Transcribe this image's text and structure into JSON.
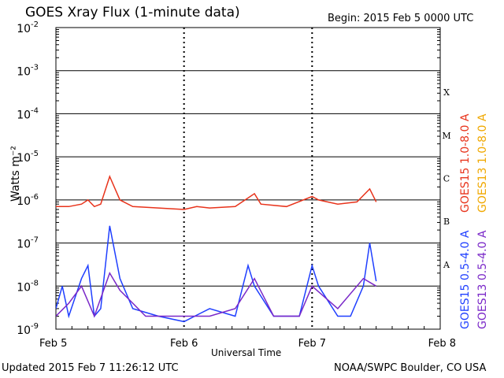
{
  "header": {
    "title": "GOES Xray Flux (1-minute data)",
    "begin": "Begin:  2015 Feb 5 0000 UTC"
  },
  "footer": {
    "updated": "Updated 2015 Feb  7 11:26:12 UTC",
    "credit": "NOAA/SWPC Boulder, CO USA"
  },
  "axes": {
    "xlabel": "Universal Time",
    "ylabel": "Watts m⁻²",
    "y_ticks": [
      {
        "exp": -9,
        "label": "10",
        "sup": "-9"
      },
      {
        "exp": -8,
        "label": "10",
        "sup": "-8"
      },
      {
        "exp": -7,
        "label": "10",
        "sup": "-7"
      },
      {
        "exp": -6,
        "label": "10",
        "sup": "-6"
      },
      {
        "exp": -5,
        "label": "10",
        "sup": "-5"
      },
      {
        "exp": -4,
        "label": "10",
        "sup": "-4"
      },
      {
        "exp": -3,
        "label": "10",
        "sup": "-3"
      },
      {
        "exp": -2,
        "label": "10",
        "sup": "-2"
      }
    ],
    "x_ticks": [
      "Feb 5",
      "Feb 6",
      "Feb 7",
      "Feb 8"
    ],
    "flare_classes": [
      {
        "label": "X",
        "exp": -4
      },
      {
        "label": "M",
        "exp": -5
      },
      {
        "label": "C",
        "exp": -6
      },
      {
        "label": "B",
        "exp": -7
      },
      {
        "label": "A",
        "exp": -8
      }
    ]
  },
  "legend": [
    {
      "text": "GOES15 1.0-8.0 A",
      "color": "#e8331b"
    },
    {
      "text": "GOES13 1.0-8.0 A",
      "color": "#f0a800"
    },
    {
      "text": "GOES15 0.5-4.0 A",
      "color": "#1f3fff"
    },
    {
      "text": "GOES13 0.5-4.0 A",
      "color": "#7a28c8"
    }
  ],
  "chart_data": {
    "type": "line",
    "title": "GOES Xray Flux (1-minute data)",
    "xlabel": "Universal Time",
    "ylabel": "Watts m⁻²",
    "y_scale": "log",
    "ylim": [
      1e-09,
      0.01
    ],
    "x_unit": "days since 2015 Feb 5 0000 UTC",
    "xlim": [
      0,
      3
    ],
    "grid": "horizontal at each decade; dashed vertical at day boundaries",
    "series": [
      {
        "name": "GOES15 1.0-8.0 A",
        "color": "#e8331b",
        "x": [
          0.0,
          0.1,
          0.2,
          0.25,
          0.3,
          0.35,
          0.42,
          0.5,
          0.6,
          0.8,
          1.0,
          1.1,
          1.2,
          1.4,
          1.55,
          1.6,
          1.8,
          2.0,
          2.05,
          2.2,
          2.35,
          2.45,
          2.5
        ],
        "y": [
          7e-07,
          7e-07,
          8e-07,
          1e-06,
          7e-07,
          8e-07,
          3.5e-06,
          1e-06,
          7e-07,
          6.5e-07,
          6e-07,
          7e-07,
          6.5e-07,
          7e-07,
          1.4e-06,
          8e-07,
          7e-07,
          1.2e-06,
          1e-06,
          8e-07,
          9e-07,
          1.8e-06,
          9e-07
        ]
      },
      {
        "name": "GOES15 0.5-4.0 A",
        "color": "#1f3fff",
        "x": [
          0.0,
          0.05,
          0.1,
          0.2,
          0.25,
          0.3,
          0.35,
          0.42,
          0.5,
          0.6,
          0.8,
          1.0,
          1.2,
          1.4,
          1.5,
          1.55,
          1.7,
          1.9,
          2.0,
          2.05,
          2.2,
          2.3,
          2.4,
          2.45,
          2.5
        ],
        "y": [
          3e-09,
          1e-08,
          2e-09,
          1.5e-08,
          3e-08,
          2e-09,
          3e-09,
          2.5e-07,
          1.5e-08,
          3e-09,
          2e-09,
          1.5e-09,
          3e-09,
          2e-09,
          3e-08,
          1e-08,
          2e-09,
          2e-09,
          3e-08,
          1e-08,
          2e-09,
          2e-09,
          1e-08,
          1e-07,
          1.3e-08
        ]
      },
      {
        "name": "GOES13 0.5-4.0 A",
        "color": "#7a28c8",
        "x": [
          0.0,
          0.1,
          0.2,
          0.3,
          0.42,
          0.5,
          0.7,
          0.9,
          1.0,
          1.2,
          1.4,
          1.55,
          1.7,
          1.9,
          2.0,
          2.2,
          2.4,
          2.5
        ],
        "y": [
          2e-09,
          4e-09,
          1e-08,
          2e-09,
          2e-08,
          8e-09,
          2e-09,
          2e-09,
          2e-09,
          2e-09,
          3e-09,
          1.5e-08,
          2e-09,
          2e-09,
          1e-08,
          3e-09,
          1.5e-08,
          1e-08
        ]
      }
    ]
  }
}
